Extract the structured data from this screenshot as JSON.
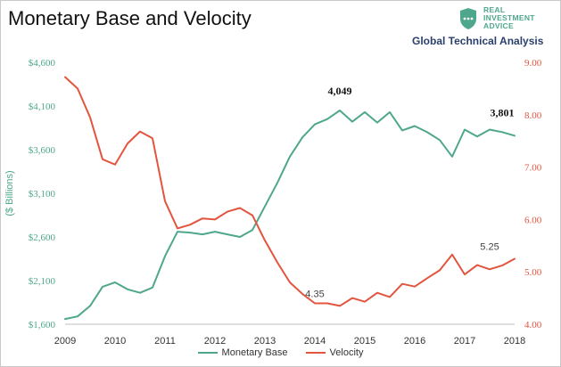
{
  "header": {
    "title": "Monetary Base and Velocity",
    "subtitle": "Global Technical Analysis",
    "brand_line1": "REAL",
    "brand_line2": "INVESTMENT",
    "brand_line3": "ADVICE"
  },
  "colors": {
    "monetary_base": "#4ea78c",
    "velocity": "#e2553f",
    "left_axis_text": "#4ea78c",
    "right_axis_text": "#e2553f",
    "subtitle": "#2a3f6b"
  },
  "chart_data": {
    "type": "line",
    "title": "Monetary Base and Velocity",
    "xlabel": "",
    "y_left_label": "($ Billions)",
    "y_right_label": "",
    "x_ticks": [
      "2009",
      "2010",
      "2011",
      "2012",
      "2013",
      "2014",
      "2015",
      "2016",
      "2017",
      "2018"
    ],
    "xlim": [
      2009,
      2018
    ],
    "y_left_ticks": [
      "$1,600",
      "$2,100",
      "$2,600",
      "$3,100",
      "$3,600",
      "$4,100",
      "$4,600"
    ],
    "y_left_lim": [
      1600,
      4600
    ],
    "y_right_ticks": [
      "4.00",
      "5.00",
      "6.00",
      "7.00",
      "8.00",
      "9.00"
    ],
    "y_right_lim": [
      4,
      9
    ],
    "grid": false,
    "legend_position": "bottom",
    "series": [
      {
        "name": "Monetary Base",
        "axis": "left",
        "x": [
          2009.0,
          2009.25,
          2009.5,
          2009.75,
          2010.0,
          2010.25,
          2010.5,
          2010.75,
          2011.0,
          2011.25,
          2011.5,
          2011.75,
          2012.0,
          2012.25,
          2012.5,
          2012.75,
          2013.0,
          2013.25,
          2013.5,
          2013.75,
          2014.0,
          2014.25,
          2014.5,
          2014.75,
          2015.0,
          2015.25,
          2015.5,
          2015.75,
          2016.0,
          2016.25,
          2016.5,
          2016.75,
          2017.0,
          2017.25,
          2017.5,
          2017.75,
          2018.0
        ],
        "values": [
          1660,
          1690,
          1810,
          2030,
          2080,
          2000,
          1960,
          2020,
          2380,
          2660,
          2650,
          2630,
          2660,
          2630,
          2600,
          2680,
          2950,
          3220,
          3520,
          3740,
          3890,
          3950,
          4049,
          3920,
          4030,
          3910,
          4030,
          3820,
          3870,
          3800,
          3710,
          3520,
          3830,
          3750,
          3830,
          3801,
          3760
        ]
      },
      {
        "name": "Velocity",
        "axis": "right",
        "x": [
          2009.0,
          2009.25,
          2009.5,
          2009.75,
          2010.0,
          2010.25,
          2010.5,
          2010.75,
          2011.0,
          2011.25,
          2011.5,
          2011.75,
          2012.0,
          2012.25,
          2012.5,
          2012.75,
          2013.0,
          2013.25,
          2013.5,
          2013.75,
          2014.0,
          2014.25,
          2014.5,
          2014.75,
          2015.0,
          2015.25,
          2015.5,
          2015.75,
          2016.0,
          2016.25,
          2016.5,
          2016.75,
          2017.0,
          2017.25,
          2017.5,
          2017.75,
          2018.0
        ],
        "values": [
          8.72,
          8.5,
          7.95,
          7.15,
          7.05,
          7.45,
          7.68,
          7.55,
          6.35,
          5.83,
          5.9,
          6.02,
          6.0,
          6.15,
          6.22,
          6.08,
          5.6,
          5.18,
          4.8,
          4.58,
          4.4,
          4.4,
          4.35,
          4.5,
          4.43,
          4.6,
          4.52,
          4.77,
          4.72,
          4.88,
          5.03,
          5.33,
          4.95,
          5.13,
          5.05,
          5.12,
          5.25
        ]
      }
    ],
    "annotations": [
      {
        "label": "4,049",
        "series": "Monetary Base",
        "x": 2014.5,
        "y": 4049,
        "bold": true
      },
      {
        "label": "3,801",
        "series": "Monetary Base",
        "x": 2017.75,
        "y": 3801,
        "bold": true
      },
      {
        "label": "4.35",
        "series": "Velocity",
        "x": 2014.5,
        "y": 4.35,
        "bold": false
      },
      {
        "label": "5.25",
        "series": "Velocity",
        "x": 2018.0,
        "y": 5.25,
        "bold": false
      }
    ]
  }
}
